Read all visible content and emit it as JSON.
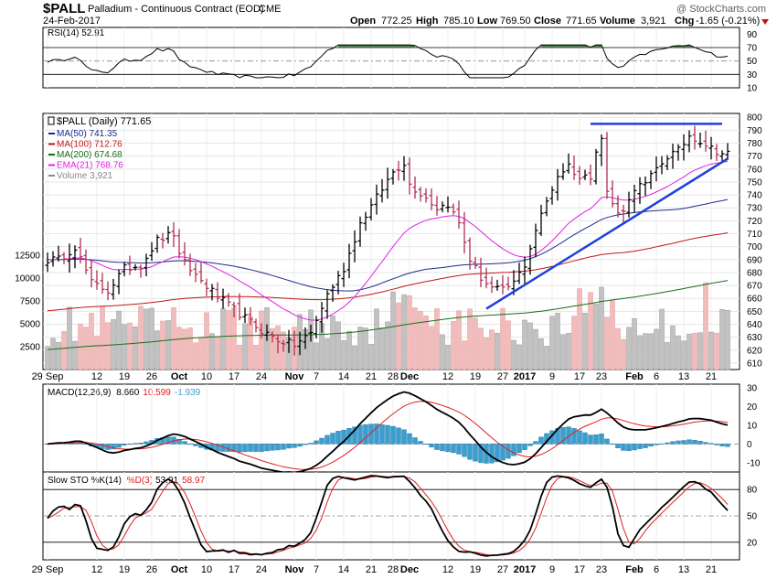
{
  "header": {
    "symbol": "$PALL",
    "name": "Palladium - Continuous Contract (EOD)",
    "exchange": "CME",
    "date": "24-Feb-2017",
    "watermark": "@ StockCharts.com",
    "ohlc": {
      "open_label": "Open",
      "open": "772.25",
      "high_label": "High",
      "high": "785.10",
      "low_label": "Low",
      "low": "769.50",
      "close_label": "Close",
      "close": "771.65",
      "volume_label": "Volume",
      "volume": "3,921",
      "chg_label": "Chg",
      "chg": "-1.65 (-0.21%)"
    }
  },
  "colors": {
    "up": "#000000",
    "down": "#b03050",
    "ma50": "#1c2a8a",
    "ma100": "#c01818",
    "ma200": "#1a6e1a",
    "ema21": "#e020e0",
    "trend": "#1f3fdd",
    "vol_up": "#c2c2c2",
    "vol_down": "#f2bcbc",
    "macd_hist": "#3a9ed0",
    "signal": "#e02020"
  },
  "rsi_panel": {
    "label": "RSI(14) 52.91",
    "ticks": [
      "90",
      "70",
      "50",
      "30",
      "10"
    ]
  },
  "price_panel": {
    "legend": [
      {
        "key": "ma50",
        "text": "MA(50) 741.35"
      },
      {
        "key": "ma100",
        "text": "MA(100) 712.76"
      },
      {
        "key": "ma200",
        "text": "MA(200) 674.68"
      },
      {
        "key": "ema21",
        "text": "EMA(21) 768.76"
      },
      {
        "key": "volume",
        "text": "Volume 3,921"
      }
    ],
    "title": "$PALL (Daily) 771.65",
    "price_ticks": [
      "800",
      "790",
      "780",
      "770",
      "760",
      "750",
      "740",
      "730",
      "720",
      "710",
      "700",
      "690",
      "680",
      "670",
      "660",
      "650",
      "640",
      "630",
      "620",
      "610"
    ],
    "volume_ticks": [
      "12500",
      "10000",
      "7500",
      "5000",
      "2500"
    ]
  },
  "macd_panel": {
    "label_main": "MACD(12,26,9)",
    "label_macd": "8.660",
    "label_signal": "10.599",
    "label_hist": "-1.939",
    "ticks": [
      "30",
      "20",
      "10",
      "0",
      "-10"
    ]
  },
  "sto_panel": {
    "label_main": "Slow STO %K(14)",
    "label_d": "%D(3)",
    "label_k_val": "53.91",
    "label_d_val": "58.97",
    "ticks": [
      "80",
      "50",
      "20"
    ]
  },
  "x_axis": {
    "labels": [
      {
        "text": "29 Sep",
        "idx": 0,
        "bold": false
      },
      {
        "text": "12",
        "idx": 9,
        "bold": false
      },
      {
        "text": "19",
        "idx": 14,
        "bold": false
      },
      {
        "text": "26",
        "idx": 19,
        "bold": false
      },
      {
        "text": "Oct",
        "idx": 24,
        "bold": true
      },
      {
        "text": "10",
        "idx": 29,
        "bold": false
      },
      {
        "text": "17",
        "idx": 34,
        "bold": false
      },
      {
        "text": "24",
        "idx": 39,
        "bold": false
      },
      {
        "text": "Nov",
        "idx": 45,
        "bold": true
      },
      {
        "text": "7",
        "idx": 49,
        "bold": false
      },
      {
        "text": "14",
        "idx": 54,
        "bold": false
      },
      {
        "text": "21",
        "idx": 59,
        "bold": false
      },
      {
        "text": "28",
        "idx": 63,
        "bold": false
      },
      {
        "text": "Dec",
        "idx": 66,
        "bold": true
      },
      {
        "text": "12",
        "idx": 73,
        "bold": false
      },
      {
        "text": "19",
        "idx": 78,
        "bold": false
      },
      {
        "text": "27",
        "idx": 83,
        "bold": false
      },
      {
        "text": "2017",
        "idx": 87,
        "bold": true
      },
      {
        "text": "9",
        "idx": 92,
        "bold": false
      },
      {
        "text": "17",
        "idx": 97,
        "bold": false
      },
      {
        "text": "23",
        "idx": 101,
        "bold": false
      },
      {
        "text": "Feb",
        "idx": 107,
        "bold": true
      },
      {
        "text": "6",
        "idx": 111,
        "bold": false
      },
      {
        "text": "13",
        "idx": 116,
        "bold": false
      },
      {
        "text": "21",
        "idx": 121,
        "bold": false
      }
    ]
  },
  "chart_data": {
    "type": "line",
    "x_label_dates": [
      "29 Sep",
      "12",
      "19",
      "26",
      "Oct",
      "10",
      "17",
      "24",
      "Nov",
      "7",
      "14",
      "21",
      "28",
      "Dec",
      "12",
      "19",
      "27",
      "2017",
      "9",
      "17",
      "23",
      "Feb",
      "6",
      "13",
      "21"
    ],
    "price_ylim": [
      605,
      803
    ],
    "price_keypoints": [
      [
        0,
        690
      ],
      [
        2,
        690
      ],
      [
        5,
        700
      ],
      [
        8,
        672
      ],
      [
        11,
        666
      ],
      [
        14,
        683
      ],
      [
        17,
        686
      ],
      [
        20,
        705
      ],
      [
        23,
        710
      ],
      [
        24,
        692
      ],
      [
        27,
        678
      ],
      [
        31,
        661
      ],
      [
        35,
        648
      ],
      [
        39,
        635
      ],
      [
        42,
        628
      ],
      [
        45,
        624
      ],
      [
        48,
        633
      ],
      [
        51,
        663
      ],
      [
        54,
        683
      ],
      [
        57,
        718
      ],
      [
        60,
        738
      ],
      [
        63,
        758
      ],
      [
        65,
        765
      ],
      [
        66,
        748
      ],
      [
        69,
        738
      ],
      [
        71,
        730
      ],
      [
        73,
        733
      ],
      [
        75,
        718
      ],
      [
        77,
        690
      ],
      [
        79,
        676
      ],
      [
        81,
        668
      ],
      [
        83,
        666
      ],
      [
        85,
        672
      ],
      [
        87,
        686
      ],
      [
        89,
        713
      ],
      [
        91,
        735
      ],
      [
        93,
        755
      ],
      [
        95,
        763
      ],
      [
        97,
        753
      ],
      [
        99,
        755
      ],
      [
        100,
        776
      ],
      [
        101,
        784
      ],
      [
        102,
        742
      ],
      [
        104,
        725
      ],
      [
        106,
        735
      ],
      [
        107,
        746
      ],
      [
        109,
        748
      ],
      [
        111,
        760
      ],
      [
        113,
        770
      ],
      [
        115,
        774
      ],
      [
        117,
        786
      ],
      [
        119,
        782
      ],
      [
        121,
        776
      ],
      [
        123,
        772
      ]
    ],
    "support_line": {
      "from": [
        80,
        652
      ],
      "to": [
        124,
        768
      ]
    },
    "resistance_line": {
      "from": [
        99,
        795
      ],
      "to": [
        123,
        795
      ]
    },
    "rsi_ylim": [
      10,
      100
    ],
    "macd_ylim": [
      -15,
      32
    ],
    "sto_ylim": [
      0,
      100
    ],
    "volume_ylim": [
      0,
      14000
    ]
  }
}
